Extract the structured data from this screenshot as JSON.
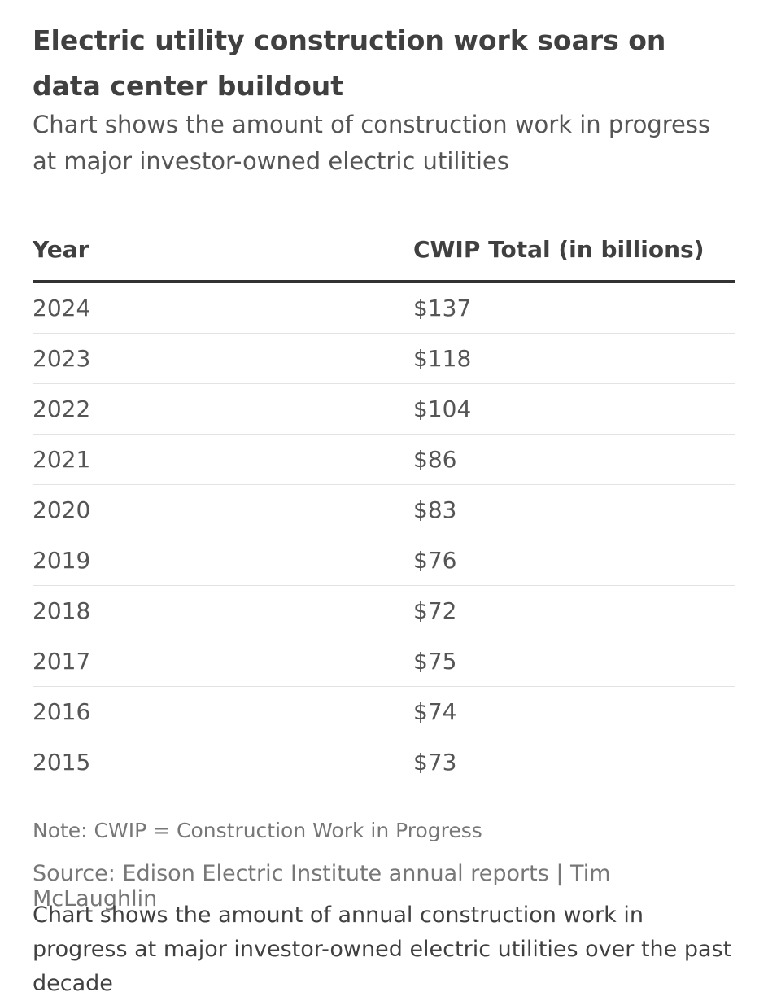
{
  "title": "Electric utility construction work soars on data center buildout",
  "subtitle": "Chart shows the amount of construction work in progress at major investor-owned electric utilities",
  "table": {
    "headers": [
      "Year",
      "CWIP Total (in billions)"
    ],
    "rows": [
      [
        "2024",
        "$137"
      ],
      [
        "2023",
        "$118"
      ],
      [
        "2022",
        "$104"
      ],
      [
        "2021",
        "$86"
      ],
      [
        "2020",
        "$83"
      ],
      [
        "2019",
        "$76"
      ],
      [
        "2018",
        "$72"
      ],
      [
        "2017",
        "$75"
      ],
      [
        "2016",
        "$74"
      ],
      [
        "2015",
        "$73"
      ]
    ]
  },
  "note": "Note: CWIP = Construction Work in Progress",
  "source": "Source: Edison Electric Institute annual reports | Tim McLaughlin",
  "caption": "Chart shows the amount of annual construction work in progress at major investor-owned electric utilities over the past decade",
  "colors": {
    "text": "#404040",
    "muted": "#777777",
    "header_rule": "#333333",
    "row_rule": "#e3e3e3"
  },
  "chart_data": {
    "type": "table",
    "title": "Electric utility construction work soars on data center buildout",
    "subtitle": "Chart shows the amount of construction work in progress at major investor-owned electric utilities",
    "columns": [
      "Year",
      "CWIP Total (in billions)"
    ],
    "categories": [
      "2024",
      "2023",
      "2022",
      "2021",
      "2020",
      "2019",
      "2018",
      "2017",
      "2016",
      "2015"
    ],
    "values": [
      137,
      118,
      104,
      86,
      83,
      76,
      72,
      75,
      74,
      73
    ],
    "display_values": [
      "$137",
      "$118",
      "$104",
      "$86",
      "$83",
      "$76",
      "$72",
      "$75",
      "$74",
      "$73"
    ]
  }
}
